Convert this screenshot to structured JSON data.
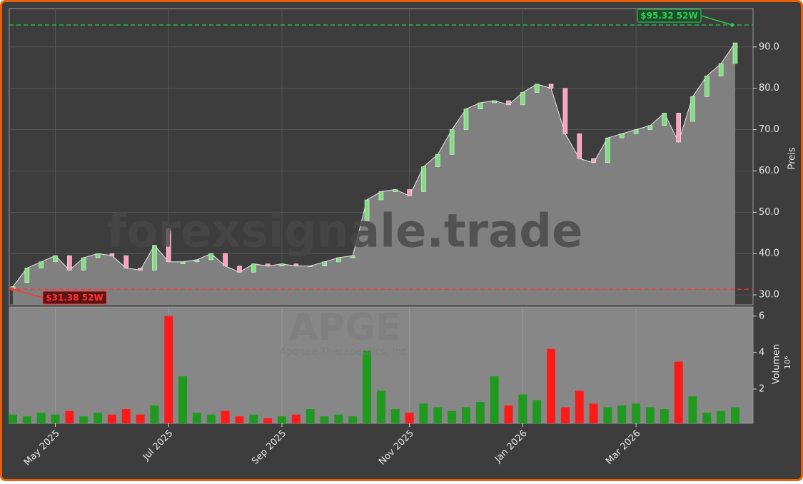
{
  "chart_data": {
    "type": "candlestick",
    "watermark": "forexsignale.trade",
    "symbol": "APGE",
    "company": "Apogee Therapeutics, Inc.",
    "ylabel": "Preis",
    "volume_label": "Volumen",
    "volume_offset_label": "10⁶",
    "categories": [
      null,
      null,
      null,
      "May 2025",
      null,
      null,
      null,
      null,
      null,
      null,
      null,
      "Jul 2025",
      null,
      null,
      null,
      null,
      null,
      null,
      null,
      "Sep 2025",
      null,
      null,
      null,
      null,
      null,
      null,
      null,
      null,
      "Nov 2025",
      null,
      null,
      null,
      null,
      null,
      null,
      null,
      "Jan 2026",
      null,
      null,
      null,
      null,
      null,
      null,
      null,
      "Mar 2026",
      null,
      null,
      null,
      null,
      null,
      null,
      null
    ],
    "open": [
      31.5,
      33,
      36.5,
      38,
      39.5,
      36,
      39,
      40,
      39.5,
      36.5,
      36,
      46,
      37.5,
      38,
      38.5,
      40,
      37,
      35.5,
      37.5,
      37,
      37.5,
      37,
      37,
      38,
      39,
      48,
      53,
      55,
      55.5,
      55,
      61,
      64,
      70,
      75,
      76.5,
      77,
      76,
      79,
      81,
      80,
      69,
      63,
      62,
      68,
      69,
      70,
      71,
      74,
      72,
      78,
      83,
      86
    ],
    "close": [
      32,
      36.5,
      38,
      39.5,
      36,
      39,
      40,
      39.5,
      36.5,
      36,
      42,
      38,
      38,
      38.5,
      40,
      37,
      35.5,
      37.5,
      37,
      37.5,
      37,
      37,
      38,
      39,
      39.5,
      53,
      55,
      55.5,
      54,
      61,
      64,
      70,
      75,
      76.5,
      77,
      76,
      79,
      81,
      80,
      69,
      63,
      62,
      68,
      69,
      70,
      71,
      74,
      67,
      78,
      83,
      86,
      91
    ],
    "volume": [
      0.6,
      0.5,
      0.7,
      0.6,
      0.8,
      0.5,
      0.7,
      0.6,
      0.9,
      0.6,
      1.1,
      6.0,
      2.7,
      0.7,
      0.6,
      0.8,
      0.5,
      0.6,
      0.4,
      0.5,
      0.6,
      0.9,
      0.5,
      0.6,
      0.5,
      4.1,
      1.9,
      0.9,
      0.7,
      1.2,
      1.0,
      0.8,
      1.0,
      1.3,
      2.7,
      1.1,
      1.7,
      1.4,
      4.2,
      1.0,
      1.9,
      1.2,
      1.0,
      1.1,
      1.2,
      1.0,
      0.9,
      3.5,
      1.6,
      0.7,
      0.8,
      1.0
    ],
    "up_color": "#1f9a1f",
    "down_color": "#ff1a1a",
    "area_color": "#808080",
    "line_color": "#e6e6e6",
    "ylim": [
      27.6,
      99.3
    ],
    "yticks": [
      {
        "value": 30,
        "label": "30.0"
      },
      {
        "value": 40,
        "label": "40.0"
      },
      {
        "value": 50,
        "label": "50.0"
      },
      {
        "value": 60,
        "label": "60.0"
      },
      {
        "value": 70,
        "label": "70.0"
      },
      {
        "value": 80,
        "label": "80.0"
      },
      {
        "value": 90,
        "label": "90.0"
      }
    ],
    "volume_ylim": [
      0.12,
      6.5
    ],
    "volume_yticks": [
      2,
      4,
      6
    ],
    "grid": true,
    "annotations": [
      {
        "value": 95.32,
        "label": "$95.32 52W",
        "color": "#2ecc55"
      },
      {
        "value": 31.38,
        "label": "$31.38 52W",
        "color": "#ff3333"
      }
    ]
  }
}
